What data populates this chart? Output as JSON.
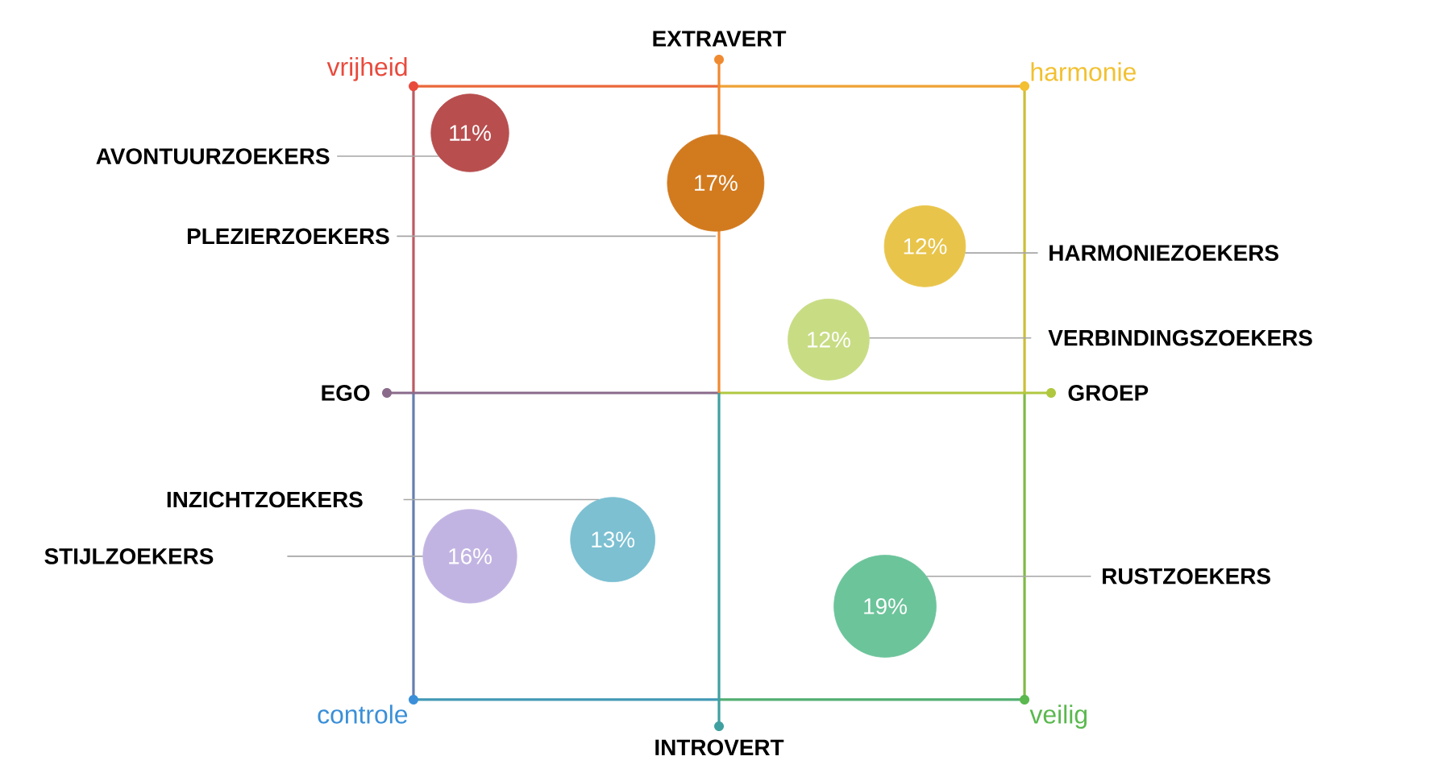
{
  "chart_data": {
    "type": "other",
    "categories": [
      "AVONTUURZOEKERS",
      "PLEZIERZOEKERS",
      "HARMONIEZOEKERS",
      "VERBINDINGSZOEKERS",
      "INZICHTZOEKERS",
      "STIJLZOEKERS",
      "RUSTZOEKERS"
    ],
    "values": [
      11,
      17,
      12,
      12,
      13,
      16,
      19
    ],
    "value_labels": [
      "11%",
      "17%",
      "12%",
      "12%",
      "13%",
      "16%",
      "19%"
    ],
    "colors": [
      "#b84e4e",
      "#d27a1e",
      "#e8c44a",
      "#c8dc84",
      "#7cc0d2",
      "#c2b4e2",
      "#6cc49a"
    ],
    "annotations": [
      "EXTRAVERT",
      "INTROVERT",
      "EGO",
      "GROEP",
      "vrijheid",
      "harmonie",
      "controle",
      "veilig"
    ]
  }
}
